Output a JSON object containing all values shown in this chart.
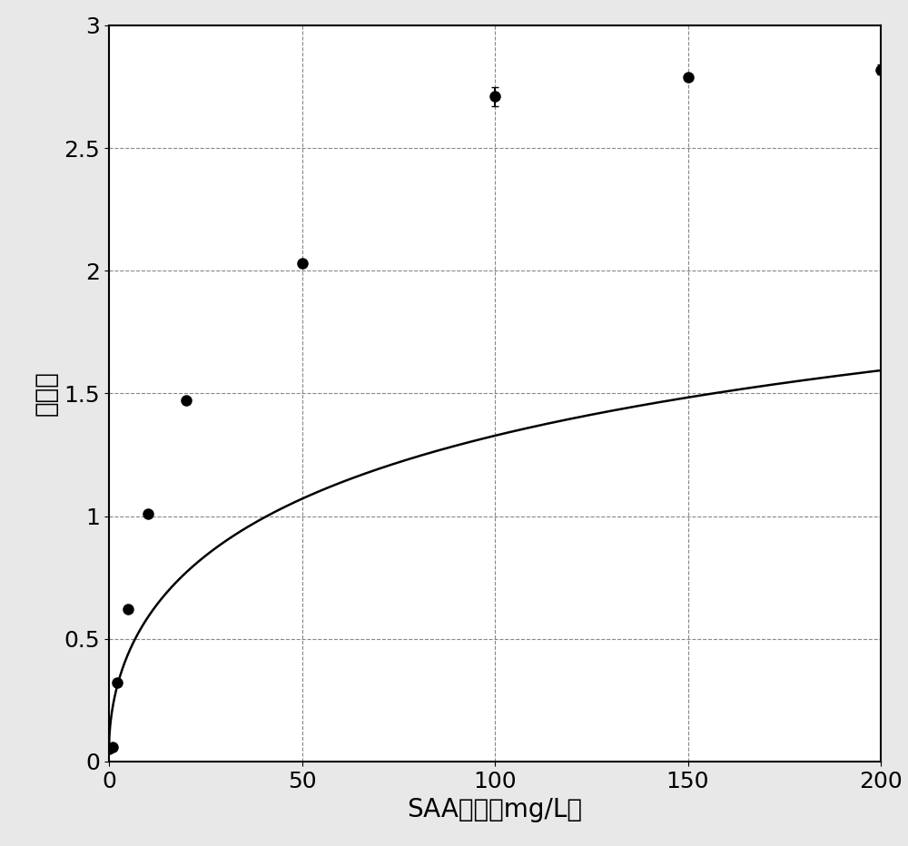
{
  "data_points_x": [
    0,
    1,
    2,
    5,
    10,
    20,
    50,
    100,
    150,
    200
  ],
  "data_points_y": [
    0.05,
    0.06,
    0.32,
    0.62,
    1.01,
    1.47,
    2.03,
    2.71,
    2.79,
    2.82
  ],
  "data_points_yerr": [
    0.0,
    0.0,
    0.0,
    0.0,
    0.0,
    0.0,
    0.0,
    0.04,
    0.0,
    0.02
  ],
  "xlabel": "SAA浓度（mg/L）",
  "ylabel": "信号値",
  "xlim": [
    0,
    200
  ],
  "ylim": [
    0,
    3.0
  ],
  "xticks": [
    0,
    50,
    100,
    150,
    200
  ],
  "yticks": [
    0,
    0.5,
    1.0,
    1.5,
    2.0,
    2.5,
    3.0
  ],
  "grid_color": "#888888",
  "line_color": "#000000",
  "marker_color": "#000000",
  "background_color": "#ffffff",
  "fig_background_color": "#e8e8e8",
  "marker_size": 8,
  "line_width": 1.8,
  "xlabel_fontsize": 20,
  "ylabel_fontsize": 20,
  "tick_fontsize": 18,
  "figsize": [
    10.0,
    9.32
  ],
  "dpi": 100
}
